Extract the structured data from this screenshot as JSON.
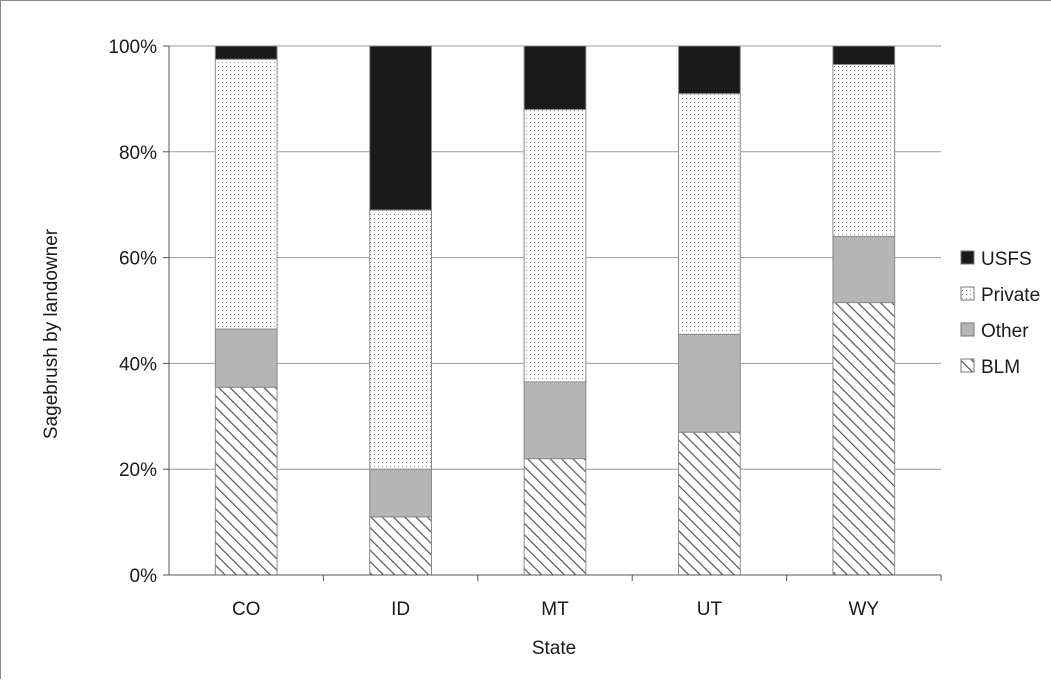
{
  "chart_data": {
    "type": "bar",
    "stacked": true,
    "normalized_percent": true,
    "title": "",
    "xlabel": "State",
    "ylabel": "Sagebrush by landowner",
    "ylim": [
      0,
      100
    ],
    "y_ticks": [
      "0%",
      "20%",
      "40%",
      "60%",
      "80%",
      "100%"
    ],
    "categories": [
      "CO",
      "ID",
      "MT",
      "UT",
      "WY"
    ],
    "series": [
      {
        "name": "BLM",
        "values": [
          35.5,
          11,
          22,
          27,
          51.5
        ],
        "color": "#ffffff",
        "pattern": "diagonal-hatch"
      },
      {
        "name": "Other",
        "values": [
          11,
          9,
          14.5,
          18.5,
          12.5
        ],
        "color": "#b5b5b5",
        "pattern": "solid"
      },
      {
        "name": "Private",
        "values": [
          51,
          49,
          51.5,
          45.5,
          32.5
        ],
        "color": "#ffffff",
        "pattern": "dotted"
      },
      {
        "name": "USFS",
        "values": [
          2.5,
          31,
          12,
          9,
          3.5
        ],
        "color": "#1a1a1a",
        "pattern": "solid"
      }
    ],
    "legend": {
      "placement": "right",
      "order": [
        "USFS",
        "Private",
        "Other",
        "BLM"
      ]
    },
    "grid": true
  }
}
